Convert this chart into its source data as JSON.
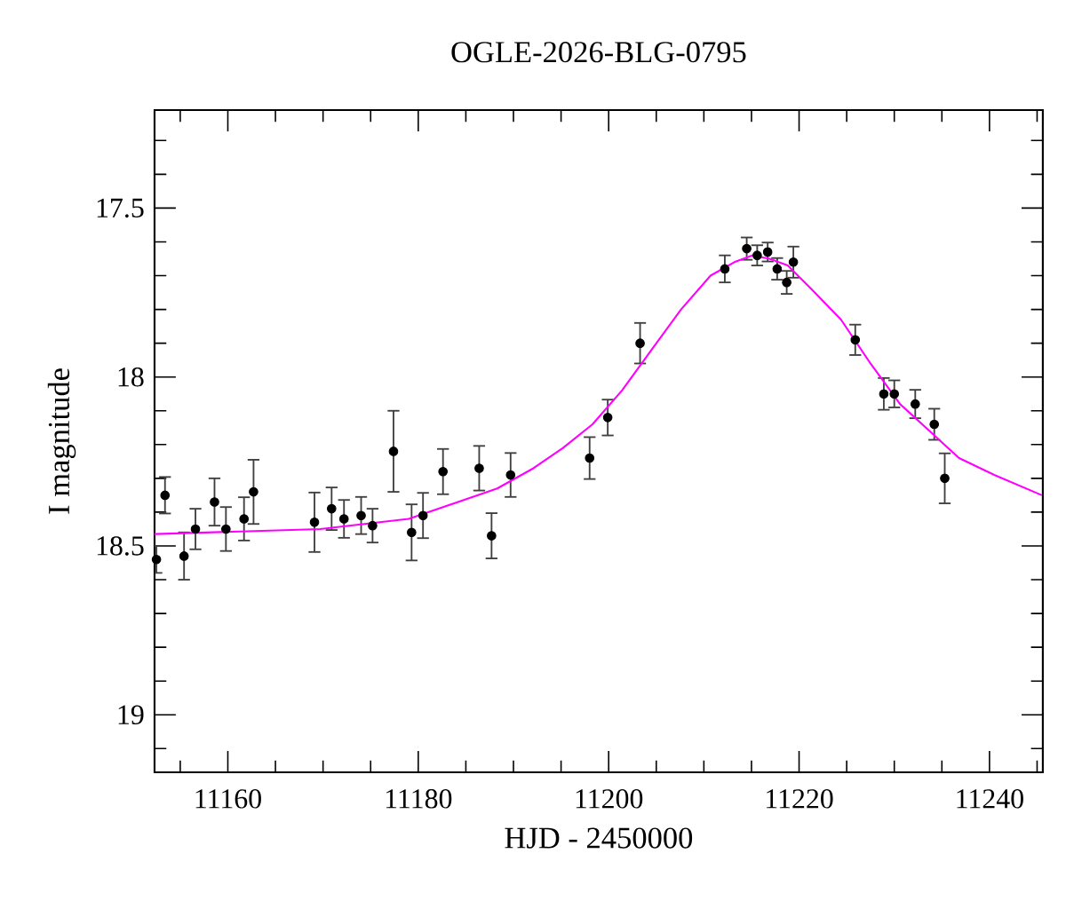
{
  "chart_data": {
    "type": "scatter",
    "title": "OGLE-2026-BLG-0795",
    "xlabel": "HJD - 2450000",
    "ylabel": "I magnitude",
    "xlim": [
      11152.3,
      11245.6
    ],
    "ylim": [
      19.17,
      17.21
    ],
    "xticks": [
      {
        "value": 11155,
        "label": null
      },
      11160,
      {
        "value": 11165,
        "label": null
      },
      11180,
      {
        "value": 11170,
        "label": null
      },
      {
        "value": 11175,
        "label": null
      },
      {
        "value": 11185,
        "label": null
      },
      11200,
      {
        "value": 11190,
        "label": null
      },
      {
        "value": 11195,
        "label": null
      },
      {
        "value": 11205,
        "label": null
      },
      11220,
      {
        "value": 11210,
        "label": null
      },
      {
        "value": 11215,
        "label": null
      },
      {
        "value": 11225,
        "label": null
      },
      11240,
      {
        "value": 11230,
        "label": null
      },
      {
        "value": 11235,
        "label": null
      },
      {
        "value": 11245,
        "label": null
      }
    ],
    "yticks": [
      {
        "value": 17.3,
        "label": null
      },
      {
        "value": 17.4,
        "label": null
      },
      17.5,
      {
        "value": 17.6,
        "label": null
      },
      {
        "value": 17.7,
        "label": null
      },
      {
        "value": 17.8,
        "label": null
      },
      {
        "value": 17.9,
        "label": null
      },
      18,
      {
        "value": 18.1,
        "label": null
      },
      {
        "value": 18.2,
        "label": null
      },
      {
        "value": 18.3,
        "label": null
      },
      {
        "value": 18.4,
        "label": null
      },
      18.5,
      {
        "value": 18.6,
        "label": null
      },
      {
        "value": 18.7,
        "label": null
      },
      {
        "value": 18.8,
        "label": null
      },
      {
        "value": 18.9,
        "label": null
      },
      19,
      {
        "value": 19.1,
        "label": null
      }
    ],
    "grid": false,
    "series": [
      {
        "color": "#000000",
        "marker": "circle",
        "x": [
          11152.5,
          11153.4,
          11155.4,
          11156.6,
          11158.6,
          11159.8,
          11161.7,
          11162.7,
          11169.1,
          11170.9,
          11172.2,
          11174.0,
          11175.2,
          11177.4,
          11179.3,
          11180.5,
          11182.6,
          11186.4,
          11187.7,
          11189.7,
          11198.0,
          11199.9,
          11203.3,
          11212.2,
          11214.5,
          11215.6,
          11216.7,
          11217.7,
          11218.7,
          11219.4,
          11225.9,
          11228.9,
          11230.0,
          11232.2,
          11234.2,
          11235.3
        ],
        "values": [
          18.54,
          18.35,
          18.53,
          18.45,
          18.37,
          18.45,
          18.42,
          18.34,
          18.43,
          18.39,
          18.42,
          18.41,
          18.44,
          18.22,
          18.46,
          18.41,
          18.28,
          18.27,
          18.47,
          18.29,
          18.24,
          18.12,
          17.9,
          17.68,
          17.62,
          17.64,
          17.63,
          17.68,
          17.72,
          17.66,
          17.89,
          18.05,
          18.05,
          18.08,
          18.14,
          18.3
        ],
        "errors": [
          0.04,
          0.054,
          0.07,
          0.06,
          0.07,
          0.065,
          0.064,
          0.095,
          0.088,
          0.063,
          0.056,
          0.055,
          0.05,
          0.12,
          0.083,
          0.067,
          0.067,
          0.066,
          0.067,
          0.065,
          0.062,
          0.053,
          0.06,
          0.04,
          0.033,
          0.03,
          0.028,
          0.032,
          0.034,
          0.046,
          0.045,
          0.047,
          0.04,
          0.042,
          0.046,
          0.074
        ]
      },
      {
        "type": "line",
        "color": "#ff00ff",
        "marker": "none",
        "line_style": "solid",
        "x": [
          11152.3,
          11169.7,
          11179.0,
          11188.3,
          11192.1,
          11195.2,
          11198.3,
          11201.4,
          11204.5,
          11207.6,
          11210.7,
          11213.2,
          11215.1,
          11216.9,
          11218.8,
          11221.3,
          11224.4,
          11227.5,
          11230.6,
          11233.7,
          11236.8,
          11240.5,
          11245.5
        ],
        "values": [
          18.465,
          18.45,
          18.42,
          18.33,
          18.27,
          18.21,
          18.14,
          18.04,
          17.92,
          17.8,
          17.7,
          17.66,
          17.64,
          17.65,
          17.67,
          17.74,
          17.83,
          17.96,
          18.08,
          18.16,
          18.24,
          18.29,
          18.35
        ]
      }
    ]
  }
}
